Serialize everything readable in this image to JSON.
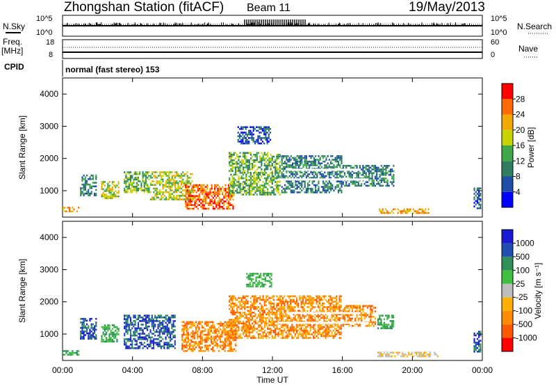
{
  "header": {
    "title": "Zhongshan Station (fitACF)",
    "beam": "Beam 11",
    "date": "19/May/2013"
  },
  "strip_panels": {
    "nsky_label": "N.Sky",
    "nsky_ticks": [
      "10^5",
      "10^0"
    ],
    "nsearch_label": "N.Search",
    "nsearch_ticks": [
      "10^5",
      "10^0"
    ],
    "freq_label": "Freq.",
    "freq_unit": "[MHz]",
    "freq_ticks": [
      "18",
      "8"
    ],
    "nave_label": "Nave",
    "nave_ticks": [
      "60",
      "0"
    ],
    "cpid_label": "CPID",
    "cpid_text": "normal (fast stereo) 153"
  },
  "colors": {
    "power_scale": [
      "#0000ff",
      "#1f4ea8",
      "#2f7f5f",
      "#3fa84a",
      "#c8d400",
      "#f2a800",
      "#ff6a00",
      "#ff0000"
    ],
    "velocity_scale": [
      "#ff0000",
      "#ff5a00",
      "#ff8c00",
      "#ffb000",
      "#bdbdbd",
      "#3fbf3f",
      "#2f8f5a",
      "#1f4eb0",
      "#1a1ad0"
    ],
    "white_band": "#ffffff"
  },
  "chart_data": [
    {
      "type": "heatmap",
      "name": "power_panel",
      "ylabel": "Slant Range [km]",
      "colorbar_label": "Power [dB]",
      "colorbar_ticks": [
        "28",
        "24",
        "20",
        "16",
        "12",
        "8",
        "4"
      ],
      "ylim": [
        180,
        4500
      ],
      "yticks": [
        "4000",
        "3000",
        "2000",
        "1000"
      ],
      "ytick_values": [
        4000,
        3000,
        2000,
        1000
      ],
      "xlim_hours": [
        0,
        24
      ],
      "echo_regions": [
        {
          "t0": 0.0,
          "t1": 1.0,
          "r0": 300,
          "r1": 500,
          "level": 5
        },
        {
          "t0": 1.0,
          "t1": 2.0,
          "r0": 800,
          "r1": 1500,
          "level": 2
        },
        {
          "t0": 2.2,
          "t1": 3.3,
          "r0": 700,
          "r1": 1300,
          "level": 4
        },
        {
          "t0": 3.5,
          "t1": 5.0,
          "r0": 900,
          "r1": 1600,
          "level": 3
        },
        {
          "t0": 5.0,
          "t1": 7.5,
          "r0": 700,
          "r1": 1600,
          "level": 4
        },
        {
          "t0": 7.0,
          "t1": 9.8,
          "r0": 400,
          "r1": 1200,
          "level": 6
        },
        {
          "t0": 9.5,
          "t1": 12.5,
          "r0": 800,
          "r1": 2200,
          "level": 3
        },
        {
          "t0": 12.5,
          "t1": 16.0,
          "r0": 900,
          "r1": 2100,
          "level": 2
        },
        {
          "t0": 16.0,
          "t1": 19.0,
          "r0": 1100,
          "r1": 1800,
          "level": 2
        },
        {
          "t0": 10.0,
          "t1": 12.0,
          "r0": 2400,
          "r1": 3000,
          "level": 1
        },
        {
          "t0": 18.0,
          "t1": 21.0,
          "r0": 250,
          "r1": 450,
          "level": 5
        },
        {
          "t0": 23.5,
          "t1": 24.0,
          "r0": 400,
          "r1": 1100,
          "level": 1
        }
      ]
    },
    {
      "type": "heatmap",
      "name": "velocity_panel",
      "ylabel": "Slant Range [km]",
      "xlabel": "Time UT",
      "colorbar_label": "Velocity [m s⁻¹]",
      "colorbar_ticks": [
        "1000",
        "500",
        "100",
        "25",
        "-25",
        "-100",
        "-500",
        "-1000"
      ],
      "ylim": [
        180,
        4500
      ],
      "yticks": [
        "4000",
        "3000",
        "2000",
        "1000"
      ],
      "ytick_values": [
        4000,
        3000,
        2000,
        1000
      ],
      "xticks": [
        "00:00",
        "04:00",
        "08:00",
        "12:00",
        "16:00",
        "20:00",
        "00:00"
      ],
      "xtick_hours": [
        0,
        4,
        8,
        12,
        16,
        20,
        24
      ],
      "echo_regions": [
        {
          "t0": 0.0,
          "t1": 1.0,
          "r0": 300,
          "r1": 500,
          "vel": "green"
        },
        {
          "t0": 1.0,
          "t1": 2.0,
          "r0": 800,
          "r1": 1500,
          "vel": "blue"
        },
        {
          "t0": 2.2,
          "t1": 3.3,
          "r0": 700,
          "r1": 1300,
          "vel": "green"
        },
        {
          "t0": 3.5,
          "t1": 6.5,
          "r0": 500,
          "r1": 1600,
          "vel": "blue"
        },
        {
          "t0": 6.8,
          "t1": 10.0,
          "r0": 400,
          "r1": 1400,
          "vel": "orange"
        },
        {
          "t0": 9.5,
          "t1": 16.0,
          "r0": 800,
          "r1": 2200,
          "vel": "orange"
        },
        {
          "t0": 16.0,
          "t1": 18.0,
          "r0": 1200,
          "r1": 1900,
          "vel": "orange"
        },
        {
          "t0": 18.0,
          "t1": 19.0,
          "r0": 1100,
          "r1": 1600,
          "vel": "green"
        },
        {
          "t0": 10.5,
          "t1": 12.0,
          "r0": 2400,
          "r1": 2900,
          "vel": "green"
        },
        {
          "t0": 18.0,
          "t1": 21.5,
          "r0": 250,
          "r1": 450,
          "vel": "gray"
        },
        {
          "t0": 23.5,
          "t1": 24.0,
          "r0": 400,
          "r1": 1100,
          "vel": "blue"
        }
      ]
    }
  ]
}
